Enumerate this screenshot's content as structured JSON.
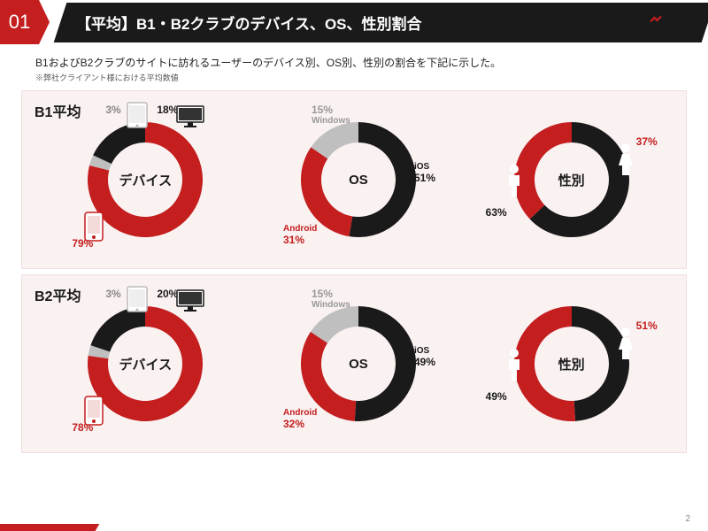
{
  "slide_number": "01",
  "title": "【平均】B1・B2クラブのデバイス、OS、性別割合",
  "brand": "PSI",
  "description": "B1およびB2クラブのサイトに訪れるユーザーのデバイス別、OS別、性別の割合を下記に示した。",
  "note": "※弊社クライアント様における平均数値",
  "page_number": "2",
  "colors": {
    "red": "#c41e1e",
    "black": "#1a1a1a",
    "gray": "#bfbfbf",
    "panel_bg": "#faf1f1"
  },
  "donut": {
    "outer_r": 65,
    "inner_r": 42
  },
  "panels": [
    {
      "label": "B1平均",
      "charts": [
        {
          "center": "デバイス",
          "segments": [
            {
              "label": "79%",
              "value": 79,
              "color": "#c41e1e",
              "label_color": "#c41e1e"
            },
            {
              "label": "3%",
              "value": 3,
              "color": "#bfbfbf",
              "label_color": "#888888"
            },
            {
              "label": "18%",
              "value": 18,
              "color": "#1a1a1a",
              "label_color": "#1a1a1a"
            }
          ],
          "icons": [
            "phone",
            "tablet",
            "desktop"
          ]
        },
        {
          "center": "OS",
          "segments": [
            {
              "label": "iOS",
              "sub": "51%",
              "value": 51,
              "color": "#1a1a1a",
              "label_color": "#1a1a1a"
            },
            {
              "label": "Android",
              "sub": "31%",
              "value": 31,
              "color": "#c41e1e",
              "label_color": "#c41e1e"
            },
            {
              "label": "15%",
              "sub": "Windows",
              "value": 15,
              "color": "#bfbfbf",
              "label_color": "#999999"
            }
          ]
        },
        {
          "center": "性別",
          "segments": [
            {
              "label": "63%",
              "value": 63,
              "color": "#1a1a1a",
              "label_color": "#1a1a1a"
            },
            {
              "label": "37%",
              "value": 37,
              "color": "#c41e1e",
              "label_color": "#c41e1e"
            }
          ],
          "icons": [
            "male",
            "female"
          ]
        }
      ]
    },
    {
      "label": "B2平均",
      "charts": [
        {
          "center": "デバイス",
          "segments": [
            {
              "label": "78%",
              "value": 78,
              "color": "#c41e1e",
              "label_color": "#c41e1e"
            },
            {
              "label": "3%",
              "value": 3,
              "color": "#bfbfbf",
              "label_color": "#888888"
            },
            {
              "label": "20%",
              "value": 20,
              "color": "#1a1a1a",
              "label_color": "#1a1a1a"
            }
          ],
          "icons": [
            "phone",
            "tablet",
            "desktop"
          ]
        },
        {
          "center": "OS",
          "segments": [
            {
              "label": "iOS",
              "sub": "49%",
              "value": 49,
              "color": "#1a1a1a",
              "label_color": "#1a1a1a"
            },
            {
              "label": "Android",
              "sub": "32%",
              "value": 32,
              "color": "#c41e1e",
              "label_color": "#c41e1e"
            },
            {
              "label": "15%",
              "sub": "Windows",
              "value": 15,
              "color": "#bfbfbf",
              "label_color": "#999999"
            }
          ]
        },
        {
          "center": "性別",
          "segments": [
            {
              "label": "49%",
              "value": 49,
              "color": "#1a1a1a",
              "label_color": "#1a1a1a"
            },
            {
              "label": "51%",
              "value": 51,
              "color": "#c41e1e",
              "label_color": "#c41e1e"
            }
          ],
          "icons": [
            "male",
            "female"
          ]
        }
      ]
    }
  ]
}
